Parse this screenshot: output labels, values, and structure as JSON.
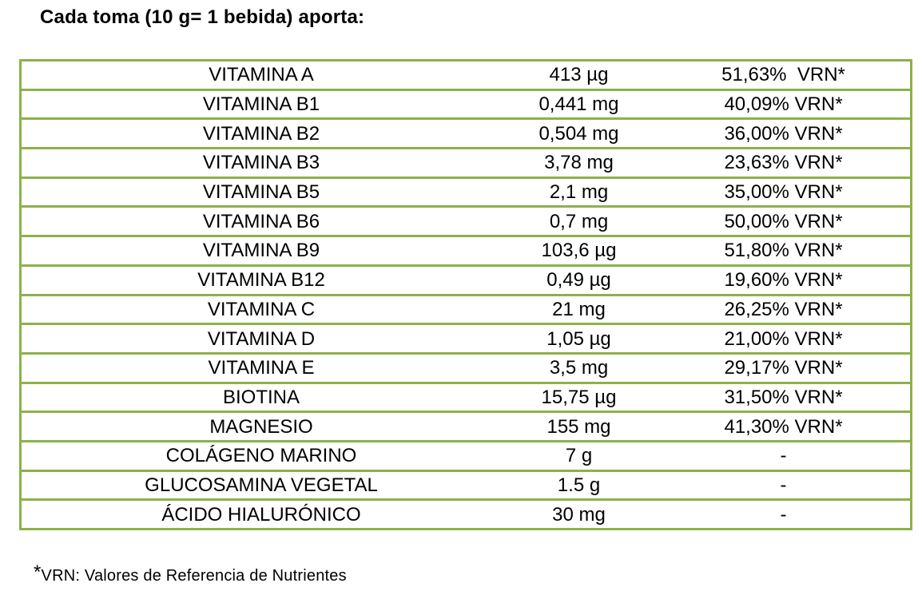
{
  "title": "Cada toma (10 g= 1 bebida) aporta:",
  "colors": {
    "border": "#8db14a",
    "text": "#000000",
    "background": "#ffffff"
  },
  "rows": [
    {
      "nutrient": "VITAMINA A",
      "amount": "413 µg",
      "vrn": "51,63%  VRN*"
    },
    {
      "nutrient": "VITAMINA B1",
      "amount": "0,441 mg",
      "vrn": "40,09% VRN*"
    },
    {
      "nutrient": "VITAMINA B2",
      "amount": "0,504 mg",
      "vrn": "36,00% VRN*"
    },
    {
      "nutrient": "VITAMINA B3",
      "amount": "3,78 mg",
      "vrn": "23,63% VRN*"
    },
    {
      "nutrient": "VITAMINA B5",
      "amount": "2,1 mg",
      "vrn": "35,00% VRN*"
    },
    {
      "nutrient": "VITAMINA B6",
      "amount": "0,7 mg",
      "vrn": "50,00% VRN*"
    },
    {
      "nutrient": "VITAMINA B9",
      "amount": "103,6 µg",
      "vrn": "51,80% VRN*"
    },
    {
      "nutrient": "VITAMINA B12",
      "amount": "0,49 µg",
      "vrn": "19,60% VRN*"
    },
    {
      "nutrient": "VITAMINA C",
      "amount": "21 mg",
      "vrn": "26,25% VRN*"
    },
    {
      "nutrient": "VITAMINA D",
      "amount": "1,05 µg",
      "vrn": "21,00% VRN*"
    },
    {
      "nutrient": "VITAMINA E",
      "amount": "3,5 mg",
      "vrn": "29,17% VRN*"
    },
    {
      "nutrient": "BIOTINA",
      "amount": "15,75 µg",
      "vrn": "31,50% VRN*"
    },
    {
      "nutrient": "MAGNESIO",
      "amount": "155 mg",
      "vrn": "41,30% VRN*"
    },
    {
      "nutrient": "COLÁGENO MARINO",
      "amount": "7 g",
      "vrn": "-"
    },
    {
      "nutrient": "GLUCOSAMINA VEGETAL",
      "amount": "1.5 g",
      "vrn": "-"
    },
    {
      "nutrient": "ÁCIDO HIALURÓNICO",
      "amount": "30 mg",
      "vrn": "-"
    }
  ],
  "footnote": {
    "star": "*",
    "text": "VRN: Valores de Referencia de Nutrientes"
  }
}
